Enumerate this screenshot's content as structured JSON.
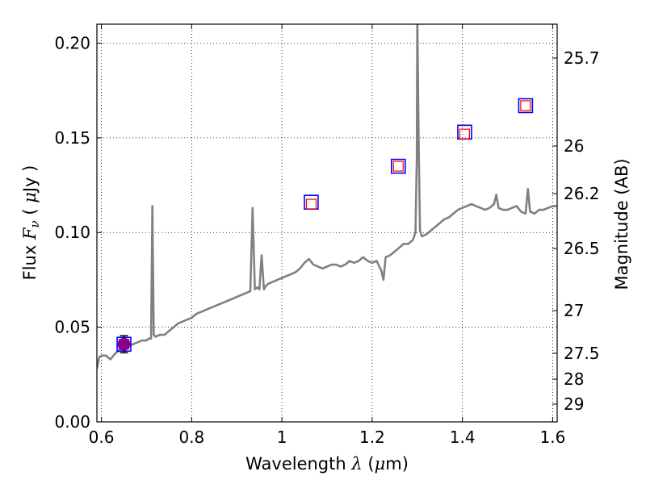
{
  "chart_data": {
    "type": "line",
    "title": "",
    "xlabel": {
      "prefix": "Wavelength",
      "symbol": "λ",
      "unit_open": "(",
      "unit_mu": "μ",
      "unit_rest": "m)"
    },
    "ylabel": {
      "prefix": "Flux",
      "symbol": "F",
      "sub": "ν",
      "unit_open": "(",
      "unit_mu": "μ",
      "unit_rest": "Jy )"
    },
    "y2label": "Magnitude (AB)",
    "xlim": [
      0.59,
      1.61
    ],
    "ylim": [
      0.0,
      0.21
    ],
    "grid": true,
    "grid_style": "dotted",
    "xticks": [
      {
        "value": 0.6,
        "label": "0.6"
      },
      {
        "value": 0.8,
        "label": "0.8"
      },
      {
        "value": 1.0,
        "label": "1"
      },
      {
        "value": 1.2,
        "label": "1.2"
      },
      {
        "value": 1.4,
        "label": "1.4"
      },
      {
        "value": 1.6,
        "label": "1.6"
      }
    ],
    "yticks": [
      {
        "value": 0.0,
        "label": "0.00"
      },
      {
        "value": 0.05,
        "label": "0.05"
      },
      {
        "value": 0.1,
        "label": "0.10"
      },
      {
        "value": 0.15,
        "label": "0.15"
      },
      {
        "value": 0.2,
        "label": "0.20"
      }
    ],
    "y2ticks": [
      {
        "mag": 25.7,
        "label": "25.7"
      },
      {
        "mag": 26.0,
        "label": "26"
      },
      {
        "mag": 26.2,
        "label": "26.2"
      },
      {
        "mag": 26.5,
        "label": "26.5"
      },
      {
        "mag": 27.0,
        "label": "27"
      },
      {
        "mag": 27.5,
        "label": "27.5"
      },
      {
        "mag": 28.0,
        "label": "28"
      },
      {
        "mag": 29.0,
        "label": "29"
      }
    ],
    "mag_zero_point_ujy": 23.9,
    "colors": {
      "spectrum": "#808080",
      "observed_box": "#0000ff",
      "model_box": "#ff0000",
      "photometry": "#8b008b",
      "grid": "#000000"
    },
    "series": [
      {
        "name": "model spectrum",
        "kind": "line",
        "x": [
          0.59,
          0.595,
          0.6,
          0.61,
          0.62,
          0.63,
          0.64,
          0.65,
          0.66,
          0.67,
          0.68,
          0.69,
          0.7,
          0.705,
          0.71,
          0.713,
          0.716,
          0.72,
          0.73,
          0.74,
          0.75,
          0.76,
          0.77,
          0.78,
          0.79,
          0.8,
          0.81,
          0.82,
          0.83,
          0.84,
          0.85,
          0.86,
          0.87,
          0.88,
          0.89,
          0.9,
          0.91,
          0.92,
          0.93,
          0.935,
          0.94,
          0.945,
          0.95,
          0.955,
          0.96,
          0.965,
          0.97,
          0.98,
          0.99,
          1.0,
          1.01,
          1.02,
          1.03,
          1.04,
          1.05,
          1.06,
          1.07,
          1.08,
          1.09,
          1.1,
          1.11,
          1.12,
          1.13,
          1.14,
          1.15,
          1.16,
          1.17,
          1.18,
          1.19,
          1.2,
          1.21,
          1.22,
          1.225,
          1.23,
          1.24,
          1.25,
          1.26,
          1.27,
          1.28,
          1.29,
          1.293,
          1.296,
          1.299,
          1.3,
          1.303,
          1.306,
          1.31,
          1.32,
          1.33,
          1.34,
          1.35,
          1.36,
          1.37,
          1.38,
          1.39,
          1.4,
          1.41,
          1.42,
          1.43,
          1.44,
          1.45,
          1.46,
          1.47,
          1.475,
          1.48,
          1.49,
          1.5,
          1.51,
          1.52,
          1.53,
          1.54,
          1.545,
          1.55,
          1.56,
          1.57,
          1.58,
          1.59,
          1.6,
          1.61
        ],
        "y": [
          0.028,
          0.034,
          0.035,
          0.035,
          0.033,
          0.036,
          0.038,
          0.039,
          0.04,
          0.041,
          0.042,
          0.043,
          0.043,
          0.044,
          0.044,
          0.114,
          0.046,
          0.045,
          0.046,
          0.046,
          0.048,
          0.05,
          0.052,
          0.053,
          0.054,
          0.055,
          0.057,
          0.058,
          0.059,
          0.06,
          0.061,
          0.062,
          0.063,
          0.064,
          0.065,
          0.066,
          0.067,
          0.068,
          0.069,
          0.113,
          0.07,
          0.071,
          0.07,
          0.088,
          0.07,
          0.072,
          0.073,
          0.074,
          0.075,
          0.076,
          0.077,
          0.078,
          0.079,
          0.081,
          0.084,
          0.086,
          0.083,
          0.082,
          0.081,
          0.082,
          0.083,
          0.083,
          0.082,
          0.083,
          0.085,
          0.084,
          0.085,
          0.087,
          0.085,
          0.084,
          0.085,
          0.08,
          0.075,
          0.087,
          0.088,
          0.09,
          0.092,
          0.094,
          0.094,
          0.096,
          0.098,
          0.1,
          0.14,
          0.215,
          0.15,
          0.101,
          0.098,
          0.099,
          0.101,
          0.103,
          0.105,
          0.107,
          0.108,
          0.11,
          0.112,
          0.113,
          0.114,
          0.115,
          0.114,
          0.113,
          0.112,
          0.113,
          0.115,
          0.12,
          0.113,
          0.112,
          0.112,
          0.113,
          0.114,
          0.111,
          0.11,
          0.123,
          0.111,
          0.11,
          0.112,
          0.112,
          0.113,
          0.114,
          0.114
        ]
      },
      {
        "name": "observed photometry",
        "kind": "box-marker",
        "x": [
          0.65,
          1.065,
          1.258,
          1.405,
          1.54
        ],
        "y": [
          0.041,
          0.116,
          0.135,
          0.153,
          0.167
        ]
      },
      {
        "name": "model photometry",
        "kind": "box-marker",
        "x": [
          0.65,
          1.065,
          1.258,
          1.405,
          1.54
        ],
        "y": [
          0.041,
          0.115,
          0.135,
          0.152,
          0.167
        ]
      },
      {
        "name": "measured flux",
        "kind": "errorbar",
        "x": [
          0.65
        ],
        "y": [
          0.041
        ],
        "yerr": [
          0.0045
        ]
      }
    ]
  }
}
